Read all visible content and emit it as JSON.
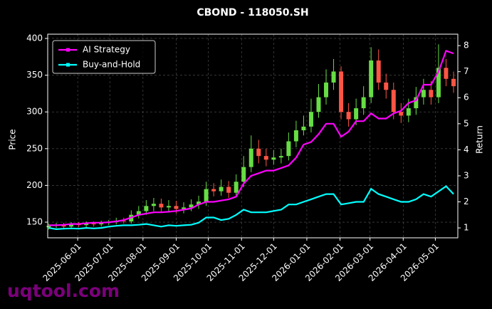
{
  "chart_data": {
    "type": "candlestick",
    "title": "CBOND - 118050.SH",
    "ylabel": "Price",
    "y2label": "Return",
    "watermark": "uqtool.com",
    "x": [
      "2025-05-05",
      "2025-05-12",
      "2025-05-19",
      "2025-05-26",
      "2025-06-02",
      "2025-06-09",
      "2025-06-16",
      "2025-06-23",
      "2025-06-30",
      "2025-07-07",
      "2025-07-14",
      "2025-07-21",
      "2025-07-28",
      "2025-08-04",
      "2025-08-11",
      "2025-08-18",
      "2025-08-25",
      "2025-09-01",
      "2025-09-08",
      "2025-09-15",
      "2025-09-22",
      "2025-09-29",
      "2025-10-06",
      "2025-10-13",
      "2025-10-20",
      "2025-10-27",
      "2025-11-03",
      "2025-11-10",
      "2025-11-17",
      "2025-11-24",
      "2025-12-01",
      "2025-12-08",
      "2025-12-15",
      "2025-12-22",
      "2025-12-29",
      "2026-01-05",
      "2026-01-12",
      "2026-01-19",
      "2026-01-26",
      "2026-02-02",
      "2026-02-09",
      "2026-02-16",
      "2026-02-23",
      "2026-03-02",
      "2026-03-09",
      "2026-03-16",
      "2026-03-23",
      "2026-03-30",
      "2026-04-06",
      "2026-04-13",
      "2026-04-20",
      "2026-04-27",
      "2026-05-04",
      "2026-05-11",
      "2026-05-18"
    ],
    "candles": {
      "up_color": "#66dd44",
      "down_color": "#ff5544",
      "open": [
        143,
        145,
        146,
        144,
        147,
        146,
        148,
        147,
        149,
        150,
        152,
        151,
        160,
        165,
        172,
        175,
        170,
        172,
        168,
        170,
        174,
        178,
        195,
        192,
        198,
        190,
        205,
        225,
        250,
        240,
        235,
        238,
        240,
        260,
        275,
        280,
        300,
        320,
        340,
        355,
        300,
        290,
        305,
        320,
        370,
        340,
        330,
        300,
        295,
        305,
        320,
        330,
        320,
        360,
        345
      ],
      "high": [
        148,
        149,
        149,
        150,
        150,
        151,
        151,
        152,
        153,
        156,
        156,
        166,
        172,
        180,
        183,
        182,
        180,
        179,
        177,
        181,
        186,
        205,
        203,
        208,
        206,
        215,
        240,
        268,
        262,
        250,
        248,
        250,
        272,
        288,
        295,
        318,
        338,
        358,
        372,
        362,
        312,
        318,
        335,
        388,
        385,
        352,
        340,
        312,
        318,
        334,
        345,
        342,
        392,
        372,
        355
      ],
      "low": [
        140,
        142,
        141,
        141,
        143,
        143,
        144,
        144,
        146,
        147,
        148,
        148,
        155,
        160,
        165,
        163,
        164,
        162,
        162,
        165,
        168,
        172,
        185,
        186,
        183,
        184,
        198,
        218,
        230,
        226,
        228,
        230,
        234,
        252,
        268,
        272,
        292,
        310,
        330,
        290,
        280,
        282,
        296,
        312,
        330,
        318,
        290,
        285,
        286,
        296,
        310,
        310,
        312,
        335,
        326
      ],
      "close": [
        145,
        146,
        144,
        147,
        146,
        148,
        147,
        149,
        150,
        152,
        151,
        160,
        165,
        172,
        175,
        170,
        172,
        168,
        170,
        174,
        178,
        195,
        192,
        198,
        190,
        205,
        225,
        250,
        240,
        235,
        238,
        240,
        260,
        275,
        280,
        300,
        320,
        340,
        355,
        300,
        290,
        305,
        320,
        370,
        340,
        330,
        300,
        295,
        305,
        320,
        330,
        320,
        360,
        345,
        335
      ]
    },
    "series": [
      {
        "name": "AI Strategy",
        "color": "#ff00ff",
        "axis": "y2",
        "values": [
          1.1,
          1.1,
          1.12,
          1.15,
          1.15,
          1.18,
          1.2,
          1.2,
          1.22,
          1.25,
          1.3,
          1.4,
          1.5,
          1.55,
          1.6,
          1.6,
          1.62,
          1.65,
          1.7,
          1.75,
          1.9,
          2.0,
          2.0,
          2.05,
          2.1,
          2.2,
          2.7,
          3.0,
          3.1,
          3.2,
          3.2,
          3.3,
          3.4,
          3.7,
          4.2,
          4.3,
          4.6,
          5.0,
          5.0,
          4.5,
          4.7,
          5.1,
          5.1,
          5.4,
          5.2,
          5.2,
          5.4,
          5.5,
          5.8,
          5.9,
          6.5,
          6.5,
          7.0,
          7.8,
          7.7
        ]
      },
      {
        "name": "Buy-and-Hold",
        "color": "#00ffff",
        "axis": "y2",
        "values": [
          1.0,
          0.95,
          0.97,
          0.98,
          0.97,
          1.0,
          0.98,
          1.0,
          1.05,
          1.08,
          1.1,
          1.1,
          1.12,
          1.15,
          1.1,
          1.05,
          1.1,
          1.08,
          1.1,
          1.12,
          1.2,
          1.4,
          1.4,
          1.3,
          1.35,
          1.5,
          1.7,
          1.6,
          1.6,
          1.6,
          1.65,
          1.7,
          1.9,
          1.9,
          2.0,
          2.1,
          2.2,
          2.3,
          2.3,
          1.9,
          1.95,
          2.0,
          2.0,
          2.5,
          2.3,
          2.2,
          2.1,
          2.0,
          2.0,
          2.1,
          2.3,
          2.2,
          2.4,
          2.6,
          2.3
        ]
      }
    ],
    "xlim": [
      "2025-05-04",
      "2026-05-22"
    ],
    "xticks": [
      "2025-06-01",
      "2025-07-01",
      "2025-08-01",
      "2025-09-01",
      "2025-10-01",
      "2025-11-01",
      "2025-12-01",
      "2026-01-01",
      "2026-02-01",
      "2026-03-01",
      "2026-04-01",
      "2026-05-01"
    ],
    "ylim": [
      128.7,
      405.8
    ],
    "yticks": [
      150,
      200,
      250,
      300,
      350,
      400
    ],
    "y2lim": [
      0.62,
      8.44
    ],
    "y2ticks": [
      1,
      2,
      3,
      4,
      5,
      6,
      7,
      8
    ],
    "grid": true,
    "legend": "upper left"
  }
}
